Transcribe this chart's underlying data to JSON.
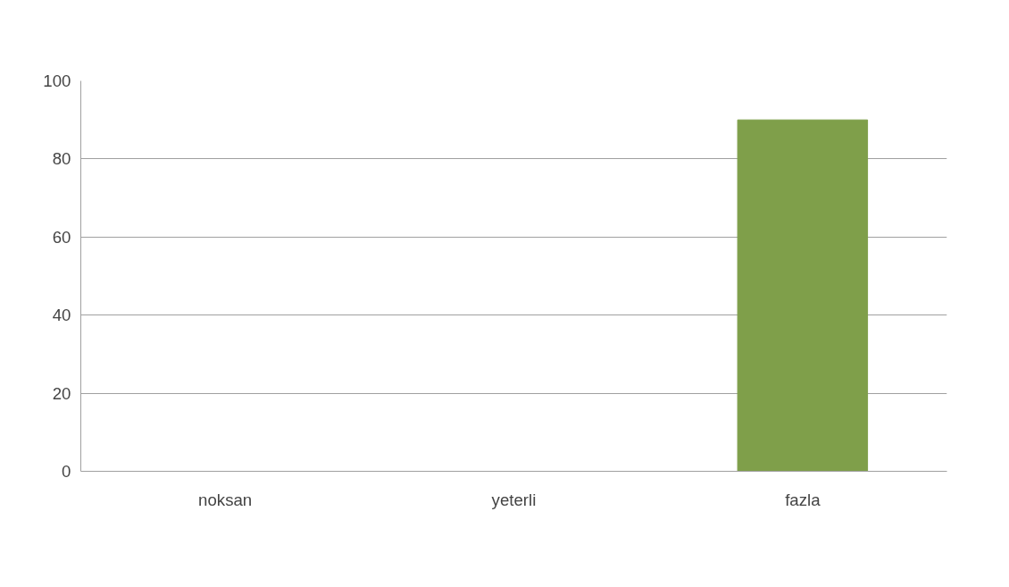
{
  "chart_data": {
    "type": "bar",
    "categories": [
      "noksan",
      "yeterli",
      "fazla"
    ],
    "values": [
      0,
      0,
      90
    ],
    "color": "#7f9f4a",
    "ylim": [
      0,
      100
    ],
    "yticks": [
      0,
      20,
      40,
      60,
      80,
      100
    ],
    "grid": "y"
  }
}
